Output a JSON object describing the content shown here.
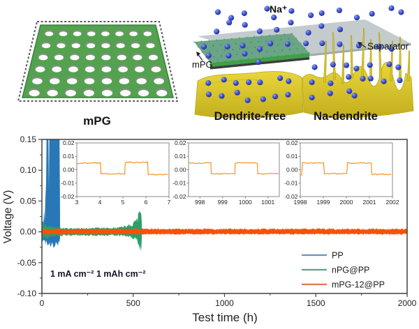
{
  "top": {
    "left_panel": {
      "label": "mPG"
    },
    "right_panel": {
      "na_ion": "Na⁺",
      "separator": "Separator",
      "mpg": "mPG",
      "dendrite_free": "Dendrite-free",
      "na_dendrite": "Na-dendrite"
    }
  },
  "colors": {
    "sheet_green": "#54a24f",
    "sheet_edge": "#37823a",
    "separator_gray": "#b6bfc2",
    "mpg_layer_green": "#6aa585",
    "na_metal_yellow": "#ddca2f",
    "ion_blue": "#3445bd",
    "annotation_ink": "#141426"
  },
  "chart_data": {
    "type": "line",
    "title": "",
    "xlabel": "Test time (h)",
    "ylabel": "Voltage (V)",
    "xlim": [
      0,
      2000
    ],
    "ylim": [
      -0.1,
      0.15
    ],
    "xticks": [
      0,
      500,
      1000,
      1500,
      2000
    ],
    "yticks": [
      0.15,
      0.1,
      0.05,
      0.0,
      -0.05,
      -0.1
    ],
    "grid": false,
    "legend_position": "lower right",
    "annotations": [
      "1 mA cm⁻²",
      "1 mAh cm⁻²"
    ],
    "legend": {
      "items": [
        {
          "label": "PP",
          "color": "#6b93b8"
        },
        {
          "label": "nPG@PP",
          "color": "#5da289"
        },
        {
          "label": "mPG-12@PP",
          "color": "#dd7a52"
        }
      ]
    },
    "series": [
      {
        "name": "PP",
        "color": "#2878b8",
        "style": "spiky",
        "fail_time": 101,
        "envelope": [
          [
            0,
            0.028,
            -0.022
          ],
          [
            6,
            0.016,
            -0.013
          ],
          [
            12,
            0.05,
            -0.016
          ],
          [
            17,
            0.028,
            -0.02
          ],
          [
            23,
            0.13,
            -0.022
          ],
          [
            26,
            0.21,
            -0.024
          ],
          [
            35,
            0.21,
            -0.026
          ],
          [
            38,
            0.08,
            -0.022
          ],
          [
            41,
            0.21,
            -0.026
          ],
          [
            48,
            0.21,
            -0.026
          ],
          [
            50,
            0.4,
            -0.028
          ],
          [
            72,
            0.4,
            -0.028
          ],
          [
            74,
            0.06,
            -0.022
          ],
          [
            79,
            0.4,
            -0.026
          ],
          [
            94,
            0.4,
            -0.026
          ],
          [
            97,
            0.05,
            -0.018
          ],
          [
            101,
            0.02,
            -0.012
          ]
        ]
      },
      {
        "name": "nPG@PP",
        "color": "#2f9e68",
        "style": "noise",
        "fail_time": 548,
        "envelope": [
          [
            0,
            0.02,
            -0.018
          ],
          [
            15,
            0.013,
            -0.012
          ],
          [
            50,
            0.01,
            -0.009
          ],
          [
            120,
            0.008,
            -0.0075
          ],
          [
            250,
            0.0075,
            -0.007
          ],
          [
            400,
            0.008,
            -0.0075
          ],
          [
            460,
            0.011,
            -0.009
          ],
          [
            500,
            0.016,
            -0.012
          ],
          [
            522,
            0.024,
            -0.018
          ],
          [
            536,
            0.042,
            -0.036
          ],
          [
            544,
            0.04,
            -0.034
          ],
          [
            548,
            0.012,
            -0.012
          ]
        ]
      },
      {
        "name": "mPG-12@PP",
        "color": "#f4520c",
        "style": "noise",
        "fail_time": 2000,
        "envelope": [
          [
            0,
            0.0058,
            -0.0048
          ],
          [
            2000,
            0.0058,
            -0.0048
          ]
        ]
      }
    ],
    "inset_color": "#f79420",
    "insets": [
      {
        "xlim": [
          3,
          7
        ],
        "xticks": [
          3,
          4,
          5,
          6,
          7
        ],
        "ylim": [
          -0.02,
          0.02
        ],
        "yticks": [
          0.02,
          0.01,
          0.0,
          -0.01,
          -0.02
        ],
        "wave": [
          [
            3,
            4.05,
            0.005
          ],
          [
            4.05,
            5.1,
            -0.003
          ],
          [
            5.1,
            6.1,
            0.0055
          ],
          [
            6.1,
            7,
            -0.0035
          ]
        ]
      },
      {
        "xlim": [
          997.5,
          1001.5
        ],
        "xticks": [
          998,
          999,
          1000,
          1001
        ],
        "ylim": [
          -0.02,
          0.02
        ],
        "yticks": [
          0.02,
          0.01,
          0.0,
          -0.01,
          -0.02
        ],
        "wave": [
          [
            997.5,
            998.5,
            0.005
          ],
          [
            998.5,
            999.55,
            -0.003
          ],
          [
            999.55,
            1000.55,
            0.005
          ],
          [
            1000.55,
            1001.5,
            -0.003
          ]
        ]
      },
      {
        "xlim": [
          1998,
          2002
        ],
        "xticks": [
          1998,
          1999,
          2000,
          2001,
          2002
        ],
        "ylim": [
          -0.02,
          0.02
        ],
        "yticks": [
          0.02,
          0.01,
          0.0,
          -0.01,
          -0.02
        ],
        "wave": [
          [
            1998,
            1998.1,
            -0.004
          ],
          [
            1998.1,
            1999.05,
            0.005
          ],
          [
            1999.05,
            2000.05,
            -0.003
          ],
          [
            2000.05,
            2001.1,
            0.005
          ],
          [
            2001.1,
            2002,
            -0.0035
          ]
        ]
      }
    ]
  }
}
